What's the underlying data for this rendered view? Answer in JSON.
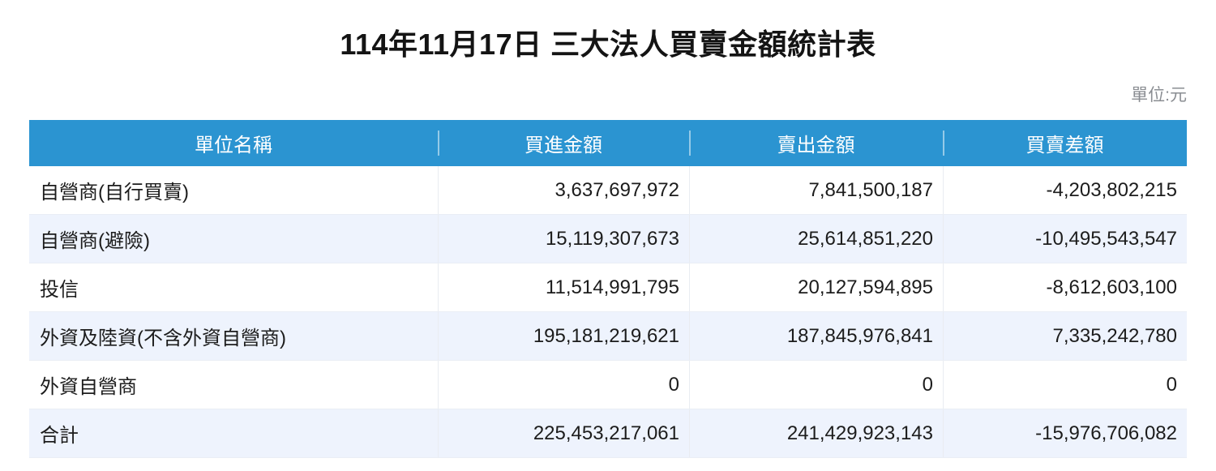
{
  "title": "114年11月17日 三大法人買賣金額統計表",
  "unit_label": "單位:元",
  "colors": {
    "header_bg": "#2b94d1",
    "header_text": "#ffffff",
    "alt_row_bg": "#eef3fd",
    "body_text": "#1c1c1c",
    "unit_label_text": "#8a8d92"
  },
  "table": {
    "columns": [
      {
        "label": "單位名稱"
      },
      {
        "label": "買進金額"
      },
      {
        "label": "賣出金額"
      },
      {
        "label": "買賣差額"
      }
    ],
    "rows": [
      {
        "name": "自營商(自行買賣)",
        "buy": "3,637,697,972",
        "sell": "7,841,500,187",
        "diff": "-4,203,802,215"
      },
      {
        "name": "自營商(避險)",
        "buy": "15,119,307,673",
        "sell": "25,614,851,220",
        "diff": "-10,495,543,547"
      },
      {
        "name": "投信",
        "buy": "11,514,991,795",
        "sell": "20,127,594,895",
        "diff": "-8,612,603,100"
      },
      {
        "name": "外資及陸資(不含外資自營商)",
        "buy": "195,181,219,621",
        "sell": "187,845,976,841",
        "diff": "7,335,242,780"
      },
      {
        "name": "外資自營商",
        "buy": "0",
        "sell": "0",
        "diff": "0"
      },
      {
        "name": "合計",
        "buy": "225,453,217,061",
        "sell": "241,429,923,143",
        "diff": "-15,976,706,082"
      }
    ]
  }
}
